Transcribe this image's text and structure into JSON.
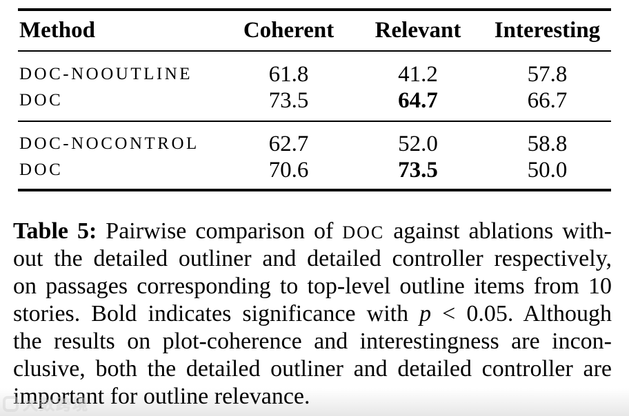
{
  "table": {
    "columns": [
      "Method",
      "Coherent",
      "Relevant",
      "Interesting"
    ],
    "groups": [
      {
        "rows": [
          {
            "method": "DOC-NOOUTLINE",
            "values": [
              {
                "v": "61.8",
                "bold": false
              },
              {
                "v": "41.2",
                "bold": false
              },
              {
                "v": "57.8",
                "bold": false
              }
            ]
          },
          {
            "method": "DOC",
            "values": [
              {
                "v": "73.5",
                "bold": false
              },
              {
                "v": "64.7",
                "bold": true
              },
              {
                "v": "66.7",
                "bold": false
              }
            ]
          }
        ]
      },
      {
        "rows": [
          {
            "method": "DOC-NOCONTROL",
            "values": [
              {
                "v": "62.7",
                "bold": false
              },
              {
                "v": "52.0",
                "bold": false
              },
              {
                "v": "58.8",
                "bold": false
              }
            ]
          },
          {
            "method": "DOC",
            "values": [
              {
                "v": "70.6",
                "bold": false
              },
              {
                "v": "73.5",
                "bold": true
              },
              {
                "v": "50.0",
                "bold": false
              }
            ]
          }
        ]
      }
    ]
  },
  "caption": {
    "lines": [
      {
        "segs": [
          {
            "t": "Table 5:"
          },
          {
            "t": " Pairwise comparison of "
          },
          {
            "t": "DOC"
          },
          {
            "t": " against ablations with-"
          }
        ]
      },
      {
        "segs": [
          {
            "t": "out the detailed outliner and detailed controller respectively,"
          }
        ]
      },
      {
        "segs": [
          {
            "t": "on passages corresponding to top-level outline items from 10"
          }
        ]
      },
      {
        "segs": [
          {
            "t": "stories. Bold indicates significance with "
          },
          {
            "t": "p"
          },
          {
            "t": " < 0.05. Although"
          }
        ]
      },
      {
        "segs": [
          {
            "t": "the results on plot-coherence and interestingness are incon-"
          }
        ]
      },
      {
        "segs": [
          {
            "t": "clusive, both the detailed outliner and detailed controller are"
          }
        ]
      },
      {
        "segs": [
          {
            "t": "important for outline relevance."
          }
        ]
      }
    ]
  },
  "watermark": {
    "text": "大数跨境"
  },
  "colors": {
    "rule": "#000000",
    "text": "#000000",
    "background": "#ffffff",
    "fade": "#e7e7e7",
    "watermark": "#d4d4d4"
  }
}
